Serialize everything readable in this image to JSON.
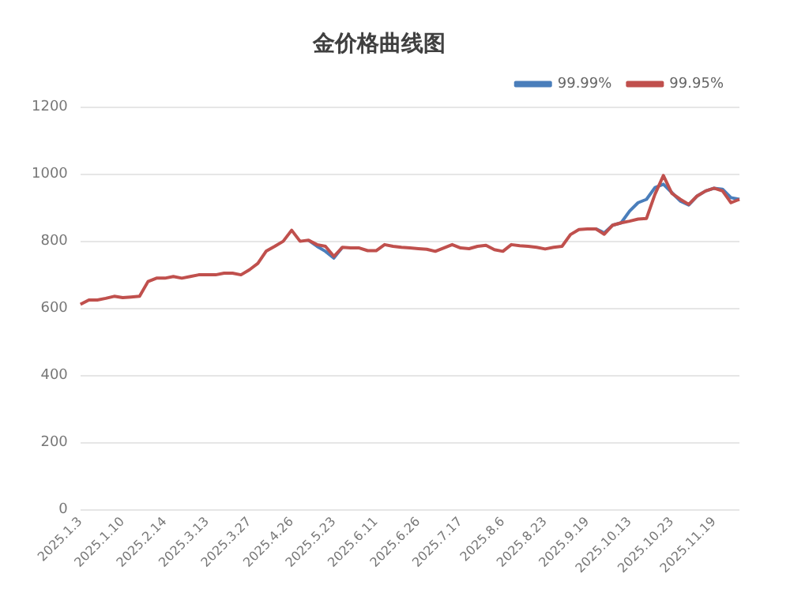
{
  "chart_data": {
    "type": "line",
    "title": "金价格曲线图",
    "categories": [
      "2025.1.3",
      null,
      null,
      null,
      null,
      "2025.1.10",
      null,
      null,
      null,
      null,
      "2025.2.14",
      null,
      null,
      null,
      null,
      "2025.3.13",
      null,
      null,
      null,
      null,
      "2025.3.27",
      null,
      null,
      null,
      null,
      "2025.4.26",
      null,
      null,
      null,
      null,
      "2025.5.23",
      null,
      null,
      null,
      null,
      "2025.6.11",
      null,
      null,
      null,
      null,
      "2025.6.26",
      null,
      null,
      null,
      null,
      "2025.7.17",
      null,
      null,
      null,
      null,
      "2025.8.6",
      null,
      null,
      null,
      null,
      "2025.8.23",
      null,
      null,
      null,
      null,
      "2025.9.19",
      null,
      null,
      null,
      null,
      "2025.10.13",
      null,
      null,
      null,
      null,
      "2025.10.23",
      null,
      null,
      null,
      null,
      "2025.11.19",
      null,
      null,
      null
    ],
    "series": [
      {
        "name": "99.99%",
        "color": "#4a7ebb",
        "values": [
          null,
          null,
          null,
          null,
          null,
          null,
          null,
          null,
          null,
          null,
          null,
          null,
          null,
          null,
          null,
          null,
          null,
          null,
          null,
          null,
          null,
          null,
          null,
          null,
          null,
          null,
          null,
          803,
          785,
          770,
          750,
          782,
          null,
          null,
          null,
          null,
          null,
          null,
          null,
          null,
          null,
          null,
          null,
          null,
          null,
          null,
          null,
          null,
          null,
          null,
          null,
          null,
          null,
          null,
          null,
          null,
          null,
          null,
          null,
          null,
          null,
          837,
          825,
          848,
          855,
          890,
          915,
          925,
          960,
          970,
          945,
          920,
          908,
          935,
          950,
          958,
          955,
          930,
          925
        ]
      },
      {
        "name": "99.95%",
        "color": "#c0504d",
        "values": [
          612,
          625,
          625,
          630,
          636,
          632,
          634,
          636,
          680,
          690,
          690,
          695,
          690,
          695,
          700,
          700,
          700,
          705,
          705,
          700,
          715,
          734,
          771,
          785,
          800,
          833,
          800,
          803,
          790,
          785,
          755,
          782,
          780,
          780,
          772,
          772,
          790,
          785,
          782,
          780,
          778,
          776,
          770,
          780,
          790,
          780,
          778,
          785,
          788,
          775,
          770,
          790,
          787,
          785,
          782,
          777,
          782,
          785,
          820,
          835,
          837,
          837,
          821,
          848,
          855,
          860,
          866,
          868,
          940,
          996,
          943,
          925,
          910,
          935,
          950,
          958,
          950,
          915,
          925
        ]
      }
    ],
    "ylim": [
      0,
      1200
    ],
    "yticks": [
      0,
      200,
      400,
      600,
      800,
      1000,
      1200
    ],
    "grid": "y",
    "legend": "top right",
    "marker": "none",
    "line_style": "solid"
  }
}
